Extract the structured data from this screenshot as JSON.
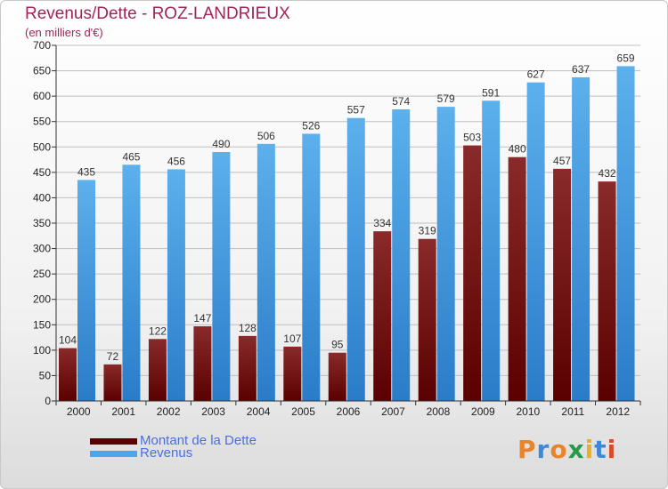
{
  "header": {
    "title": "Revenus/Dette - ROZ-LANDRIEUX",
    "subtitle": "(en milliers d'€)"
  },
  "legend": [
    {
      "label": "Montant de la Dette",
      "color": "#6b0a0a"
    },
    {
      "label": "Revenus",
      "color": "#4da6e8"
    }
  ],
  "logo": {
    "text": "Proxiti",
    "letters": [
      "P",
      "r",
      "o",
      "x",
      "i",
      "t",
      "i"
    ],
    "colors": [
      "#e8852a",
      "#3a8ad9",
      "#e8852a",
      "#2a9a4a",
      "#e8b020",
      "#3a8ad9",
      "#d84a2a"
    ]
  },
  "chart_data": {
    "type": "bar",
    "categories": [
      "2000",
      "2001",
      "2002",
      "2003",
      "2004",
      "2005",
      "2006",
      "2007",
      "2008",
      "2009",
      "2010",
      "2011",
      "2012"
    ],
    "series": [
      {
        "name": "Montant de la Dette",
        "color": "#6b0a0a",
        "values": [
          104,
          72,
          122,
          147,
          128,
          107,
          95,
          334,
          319,
          503,
          480,
          457,
          432
        ]
      },
      {
        "name": "Revenus",
        "color": "#4da6e8",
        "values": [
          435,
          465,
          456,
          490,
          506,
          526,
          557,
          574,
          579,
          591,
          627,
          637,
          659
        ]
      }
    ],
    "ylim": [
      0,
      700
    ],
    "yticks": [
      0,
      50,
      100,
      150,
      200,
      250,
      300,
      350,
      400,
      450,
      500,
      550,
      600,
      650,
      700
    ],
    "grid": true
  }
}
